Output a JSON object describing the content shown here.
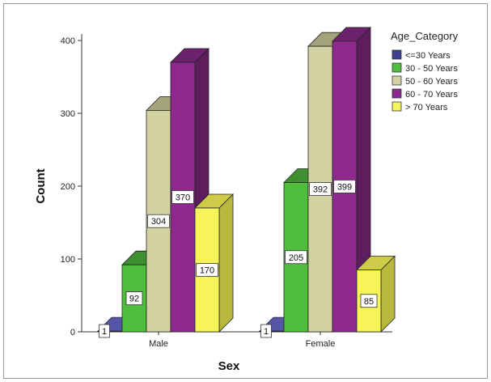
{
  "chart_data": {
    "type": "bar",
    "style": "3d-clustered",
    "categories": [
      "Male",
      "Female"
    ],
    "series": [
      {
        "name": "<=30 Years",
        "values": [
          1,
          1
        ],
        "color": "#3f3f94",
        "side": "#25255e",
        "top": "#5656a8"
      },
      {
        "name": "30 - 50 Years",
        "values": [
          92,
          205
        ],
        "color": "#4fbe3c",
        "side": "#2f7a22",
        "top": "#3e8f30"
      },
      {
        "name": "50 - 60 Years",
        "values": [
          304,
          392
        ],
        "color": "#d2d2a2",
        "side": "#b3b384",
        "top": "#a4a47a"
      },
      {
        "name": "60 - 70 Years",
        "values": [
          370,
          399
        ],
        "color": "#8e2a8e",
        "side": "#5e1e5e",
        "top": "#6d226d"
      },
      {
        "name": "> 70 Years",
        "values": [
          170,
          85
        ],
        "color": "#f6f45a",
        "side": "#b9b73e",
        "top": "#cdcb48"
      }
    ],
    "data_labels": [
      [
        "1",
        "92",
        "304",
        "370",
        "170"
      ],
      [
        "1",
        "205",
        "392",
        "399",
        "85"
      ]
    ],
    "y_ticks": [
      "0",
      "100",
      "200",
      "300",
      "400"
    ],
    "ylim": [
      0,
      400
    ],
    "xlabel": "Sex",
    "ylabel": "Count",
    "legend": {
      "title": "Age_Category",
      "position": "top-right"
    },
    "grid": false
  }
}
